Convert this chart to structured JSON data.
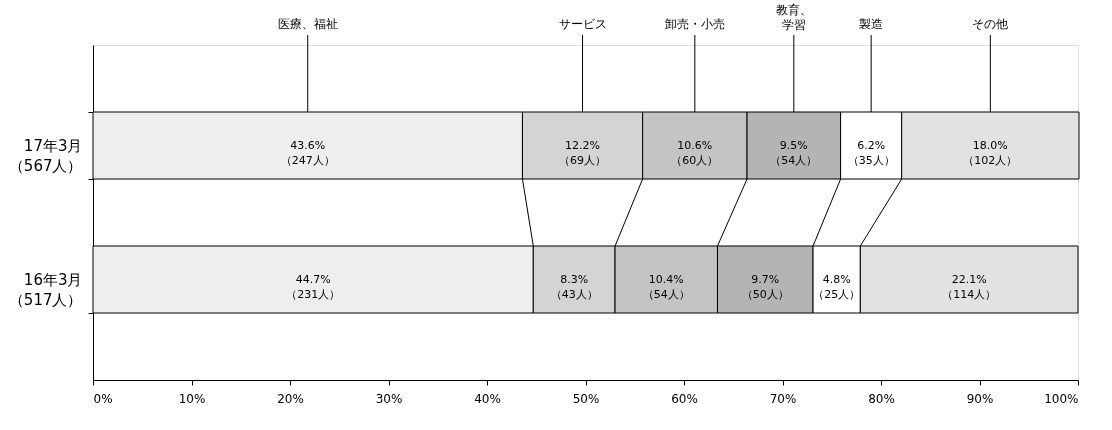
{
  "chart_data": {
    "type": "bar",
    "orientation": "horizontal",
    "stacked": true,
    "categories": [
      "17年3月（567人）",
      "16年3月（517人）"
    ],
    "series": [
      {
        "name": "医療、福祉",
        "color": "#eeeeee",
        "values": [
          43.6,
          44.7
        ],
        "value_labels": [
          "43.6%\n（247人）",
          "44.7%\n（231人）"
        ]
      },
      {
        "name": "サービス",
        "color": "#d4d4d4",
        "values": [
          12.2,
          8.3
        ],
        "value_labels": [
          "12.2%\n（69人）",
          "8.3%\n（43人）"
        ]
      },
      {
        "name": "卸売・小売",
        "color": "#c4c4c4",
        "values": [
          10.6,
          10.4
        ],
        "value_labels": [
          "10.6%\n（60人）",
          "10.4%\n（54人）"
        ]
      },
      {
        "name": "教育、学習",
        "color": "#b4b4b4",
        "values": [
          9.5,
          9.7
        ],
        "value_labels": [
          "9.5%\n（54人）",
          "9.7%\n（50人）"
        ]
      },
      {
        "name": "製造",
        "color": "#ffffff",
        "values": [
          6.2,
          4.8
        ],
        "value_labels": [
          "6.2%\n（35人）",
          "4.8%\n（25人）"
        ]
      },
      {
        "name": "その他",
        "color": "#e2e2e2",
        "values": [
          18.0,
          22.1
        ],
        "value_labels": [
          "18.0%\n（102人）",
          "22.1%\n（114人）"
        ]
      }
    ],
    "xlim": [
      0,
      100
    ],
    "xticks": [
      {
        "value": 0,
        "label": "0%"
      },
      {
        "value": 10,
        "label": "10%"
      },
      {
        "value": 20,
        "label": "20%"
      },
      {
        "value": 30,
        "label": "30%"
      },
      {
        "value": 40,
        "label": "40%"
      },
      {
        "value": 50,
        "label": "50%"
      },
      {
        "value": 60,
        "label": "60%"
      },
      {
        "value": 70,
        "label": "70%"
      },
      {
        "value": 80,
        "label": "80%"
      },
      {
        "value": 90,
        "label": "90%"
      },
      {
        "value": 100,
        "label": "100%"
      }
    ],
    "grid": false
  }
}
